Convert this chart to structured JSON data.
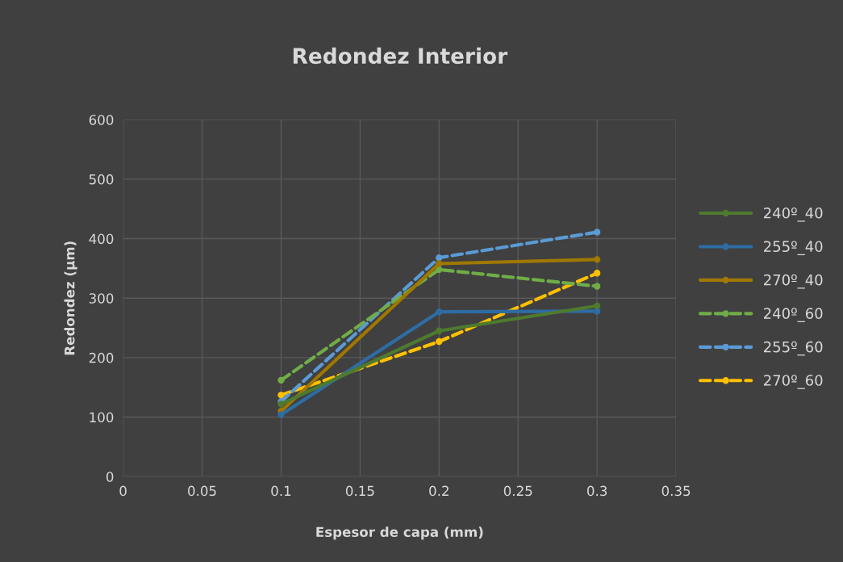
{
  "chart_data": {
    "type": "line",
    "title": "Redondez Interior",
    "xlabel": "Espesor de capa (mm)",
    "ylabel": "Redondez (µm)",
    "x": [
      0.1,
      0.2,
      0.3
    ],
    "xlim": [
      0,
      0.35
    ],
    "xticks": [
      {
        "value": 0,
        "label": "0"
      },
      {
        "value": 0.05,
        "label": "0.05"
      },
      {
        "value": 0.1,
        "label": "0.1"
      },
      {
        "value": 0.15,
        "label": "0.15"
      },
      {
        "value": 0.2,
        "label": "0.2"
      },
      {
        "value": 0.25,
        "label": "0.25"
      },
      {
        "value": 0.3,
        "label": "0.3"
      },
      {
        "value": 0.35,
        "label": "0.35"
      }
    ],
    "ylim": [
      0,
      600
    ],
    "yticks": [
      0,
      100,
      200,
      300,
      400,
      500,
      600
    ],
    "grid": true,
    "legend": "right",
    "marker": "circle",
    "series": [
      {
        "name": "240º_40",
        "color": "#4e7a2e",
        "values": [
          122,
          245,
          287
        ],
        "line_style": "solid"
      },
      {
        "name": "255º_40",
        "color": "#2e6ca4",
        "values": [
          104,
          277,
          278
        ],
        "line_style": "solid"
      },
      {
        "name": "270º_40",
        "color": "#a07800",
        "values": [
          110,
          358,
          365
        ],
        "line_style": "solid"
      },
      {
        "name": "240º_60",
        "color": "#70ad47",
        "values": [
          162,
          348,
          320
        ],
        "line_style": "dashed"
      },
      {
        "name": "255º_60",
        "color": "#5b9bd5",
        "values": [
          126,
          368,
          411
        ],
        "line_style": "dashed"
      },
      {
        "name": "270º_60",
        "color": "#ffc000",
        "values": [
          137,
          227,
          342
        ],
        "line_style": "dashed"
      }
    ]
  }
}
